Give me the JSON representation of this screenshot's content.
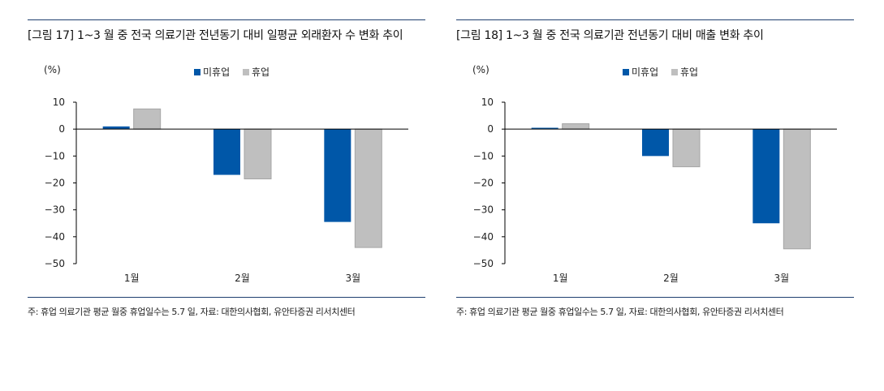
{
  "colors": {
    "series_1": "#0057a8",
    "series_2": "#bfbfbf",
    "axis": "#000000",
    "rule": "#1f3f6f"
  },
  "figures": [
    {
      "title": "[그림 17] 1~3 월 중 전국 의료기관 전년동기 대비 일평균 외래환자 수 변화 추이",
      "note": "주: 휴업 의료기관 평균 월중 휴업일수는 5.7 일, 자료: 대한의사협회, 유안타증권 리서치센터"
    },
    {
      "title": "[그림 18] 1~3 월 중 전국 의료기관 전년동기 대비 매출 변화 추이",
      "note": "주: 휴업 의료기관 평균 월중 휴업일수는 5.7 일, 자료: 대한의사협회, 유안타증권 리서치센터"
    }
  ],
  "chart_data": [
    {
      "type": "bar",
      "unit": "(%)",
      "categories": [
        "1월",
        "2월",
        "3월"
      ],
      "series": [
        {
          "name": "미휴업",
          "values": [
            1,
            -17,
            -34.5
          ]
        },
        {
          "name": "휴업",
          "values": [
            7.5,
            -18.5,
            -44
          ]
        }
      ],
      "ylim": [
        -50,
        10
      ],
      "yticks": [
        "10",
        "0",
        "−10",
        "−20",
        "−30",
        "−40",
        "−50"
      ],
      "legend": "top-center",
      "grid": false
    },
    {
      "type": "bar",
      "unit": "(%)",
      "categories": [
        "1월",
        "2월",
        "3월"
      ],
      "series": [
        {
          "name": "미휴업",
          "values": [
            0.5,
            -10,
            -35
          ]
        },
        {
          "name": "휴업",
          "values": [
            2,
            -14,
            -44.5
          ]
        }
      ],
      "ylim": [
        -50,
        10
      ],
      "yticks": [
        "10",
        "0",
        "−10",
        "−20",
        "−30",
        "−40",
        "−50"
      ],
      "legend": "top-center",
      "grid": false
    }
  ]
}
